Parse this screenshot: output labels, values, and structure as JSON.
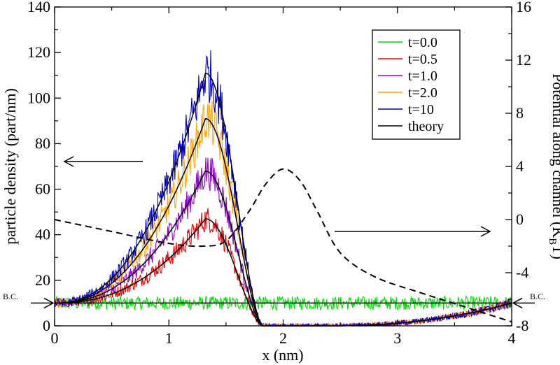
{
  "chart_data": {
    "type": "line",
    "xlabel": "x  (nm)",
    "ylabel_left": "particle density (part/nm)",
    "ylabel_right_main": "Potential along channel (K",
    "ylabel_right_sub": "B",
    "ylabel_right_tail": "T)",
    "xlim": [
      0,
      4
    ],
    "ylim_left": [
      0,
      140
    ],
    "ylim_right": [
      -8,
      16
    ],
    "x_ticks": [
      "0",
      "1",
      "2",
      "3",
      "4"
    ],
    "y_left_ticks": [
      "0",
      "20",
      "40",
      "60",
      "80",
      "100",
      "120",
      "140"
    ],
    "y_right_ticks": [
      "-8",
      "-4",
      "0",
      "4",
      "8",
      "12",
      "16"
    ],
    "bc_label": "B.C.",
    "bc_value": 10,
    "theory_peak_x": 1.32,
    "series": [
      {
        "name": "t=0.0",
        "color": "#00dd00",
        "peak": 10
      },
      {
        "name": "t=0.5",
        "color": "#ee0000",
        "peak": 47
      },
      {
        "name": "t=1.0",
        "color": "#9400d3",
        "peak": 68
      },
      {
        "name": "t=2.0",
        "color": "#ffa500",
        "peak": 91
      },
      {
        "name": "t=10",
        "color": "#0000cc",
        "peak": 111
      },
      {
        "name": "theory",
        "color": "#000000"
      }
    ],
    "potential_curve": {
      "axis": "right",
      "style": "dashed",
      "x": [
        0,
        0.5,
        1.0,
        1.3,
        1.5,
        1.7,
        1.85,
        2.0,
        2.15,
        2.3,
        2.5,
        2.8,
        3.2,
        3.6,
        4.0
      ],
      "y": [
        0.0,
        -0.9,
        -1.8,
        -2.0,
        -1.6,
        0.6,
        2.7,
        3.8,
        2.9,
        0.6,
        -2.5,
        -4.3,
        -5.5,
        -6.6,
        -7.7
      ]
    },
    "arrows": [
      {
        "direction": "left",
        "axis": "left"
      },
      {
        "direction": "right",
        "axis": "right"
      }
    ],
    "legend_position": "top-right",
    "grid": false
  }
}
